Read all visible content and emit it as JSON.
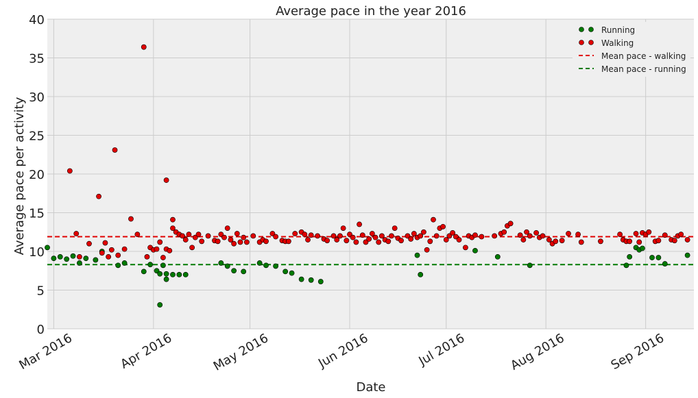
{
  "chart_data": {
    "type": "scatter",
    "title": "Average pace in the year 2016",
    "xlabel": "Date",
    "ylabel": "Average pace per activity",
    "ylim": [
      0,
      40
    ],
    "yticks": [
      "0",
      "5",
      "10",
      "15",
      "20",
      "25",
      "30",
      "35",
      "40"
    ],
    "xlim": [
      -2,
      199
    ],
    "xticks": [
      {
        "day": 0,
        "label": "Mar 2016"
      },
      {
        "day": 31,
        "label": "Apr 2016"
      },
      {
        "day": 61,
        "label": "May 2016"
      },
      {
        "day": 92,
        "label": "Jun 2016"
      },
      {
        "day": 122,
        "label": "Jul 2016"
      },
      {
        "day": 153,
        "label": "Aug 2016"
      },
      {
        "day": 184,
        "label": "Sep 2016"
      }
    ],
    "x_note": "x values are days since 2016-03-01",
    "grid": true,
    "legend_position": "top-right",
    "colors": {
      "running": "#007a00",
      "walking": "#e00000",
      "background": "#efefef",
      "grid": "#cccccc"
    },
    "series": [
      {
        "name": "Running",
        "points": [
          [
            -2,
            10.5
          ],
          [
            0,
            9.1
          ],
          [
            2,
            9.3
          ],
          [
            4,
            9.0
          ],
          [
            6,
            9.4
          ],
          [
            8,
            8.5
          ],
          [
            10,
            9.1
          ],
          [
            13,
            8.9
          ],
          [
            15,
            10.0
          ],
          [
            20,
            8.2
          ],
          [
            22,
            8.5
          ],
          [
            28,
            7.4
          ],
          [
            30,
            8.3
          ],
          [
            32,
            7.5
          ],
          [
            34,
            8.2
          ],
          [
            33,
            3.1
          ],
          [
            33,
            7.1
          ],
          [
            35,
            6.4
          ],
          [
            35,
            7.1
          ],
          [
            37,
            7.0
          ],
          [
            39,
            7.0
          ],
          [
            41,
            7.0
          ],
          [
            52,
            8.5
          ],
          [
            54,
            8.1
          ],
          [
            56,
            7.5
          ],
          [
            59,
            7.4
          ],
          [
            64,
            8.5
          ],
          [
            66,
            8.2
          ],
          [
            69,
            8.1
          ],
          [
            72,
            7.4
          ],
          [
            74,
            7.2
          ],
          [
            77,
            6.4
          ],
          [
            80,
            6.3
          ],
          [
            83,
            6.1
          ],
          [
            113,
            9.5
          ],
          [
            114,
            7.0
          ],
          [
            131,
            10.1
          ],
          [
            138,
            9.3
          ],
          [
            148,
            8.2
          ],
          [
            178,
            8.2
          ],
          [
            179,
            9.3
          ],
          [
            181,
            10.5
          ],
          [
            182,
            10.2
          ],
          [
            183,
            10.4
          ],
          [
            186,
            9.2
          ],
          [
            188,
            9.2
          ],
          [
            190,
            8.4
          ],
          [
            197,
            9.5
          ]
        ]
      },
      {
        "name": "Walking",
        "points": [
          [
            5,
            20.4
          ],
          [
            7,
            12.3
          ],
          [
            8,
            9.3
          ],
          [
            11,
            11.0
          ],
          [
            14,
            17.1
          ],
          [
            15,
            9.8
          ],
          [
            16,
            11.1
          ],
          [
            17,
            9.3
          ],
          [
            18,
            10.2
          ],
          [
            19,
            23.1
          ],
          [
            20,
            9.5
          ],
          [
            22,
            10.3
          ],
          [
            24,
            14.2
          ],
          [
            26,
            12.2
          ],
          [
            28,
            36.4
          ],
          [
            29,
            9.3
          ],
          [
            30,
            10.5
          ],
          [
            31,
            10.2
          ],
          [
            32,
            10.3
          ],
          [
            33,
            11.2
          ],
          [
            34,
            9.2
          ],
          [
            35,
            19.2
          ],
          [
            35,
            10.3
          ],
          [
            36,
            10.1
          ],
          [
            37,
            13.0
          ],
          [
            37,
            14.1
          ],
          [
            38,
            12.5
          ],
          [
            39,
            12.2
          ],
          [
            40,
            12.0
          ],
          [
            41,
            11.5
          ],
          [
            42,
            12.2
          ],
          [
            43,
            10.5
          ],
          [
            44,
            11.8
          ],
          [
            45,
            12.2
          ],
          [
            46,
            11.3
          ],
          [
            48,
            12.0
          ],
          [
            50,
            11.4
          ],
          [
            51,
            11.3
          ],
          [
            52,
            12.2
          ],
          [
            53,
            11.8
          ],
          [
            54,
            13.0
          ],
          [
            55,
            11.5
          ],
          [
            56,
            11.0
          ],
          [
            57,
            12.3
          ],
          [
            58,
            11.2
          ],
          [
            59,
            11.8
          ],
          [
            60,
            11.2
          ],
          [
            62,
            12.0
          ],
          [
            64,
            11.2
          ],
          [
            65,
            11.5
          ],
          [
            66,
            11.3
          ],
          [
            68,
            12.3
          ],
          [
            69,
            11.9
          ],
          [
            71,
            11.4
          ],
          [
            72,
            11.3
          ],
          [
            73,
            11.3
          ],
          [
            75,
            12.3
          ],
          [
            77,
            12.5
          ],
          [
            78,
            12.2
          ],
          [
            79,
            11.5
          ],
          [
            80,
            12.1
          ],
          [
            82,
            12.0
          ],
          [
            84,
            11.6
          ],
          [
            85,
            11.4
          ],
          [
            87,
            12.0
          ],
          [
            88,
            11.5
          ],
          [
            89,
            12.0
          ],
          [
            90,
            13.0
          ],
          [
            91,
            11.4
          ],
          [
            92,
            12.2
          ],
          [
            93,
            11.8
          ],
          [
            94,
            11.2
          ],
          [
            95,
            13.5
          ],
          [
            96,
            12.1
          ],
          [
            97,
            11.2
          ],
          [
            98,
            11.6
          ],
          [
            99,
            12.3
          ],
          [
            100,
            11.8
          ],
          [
            101,
            11.2
          ],
          [
            102,
            12.0
          ],
          [
            103,
            11.5
          ],
          [
            104,
            11.3
          ],
          [
            105,
            12.0
          ],
          [
            106,
            13.0
          ],
          [
            107,
            11.7
          ],
          [
            108,
            11.4
          ],
          [
            110,
            12.0
          ],
          [
            111,
            11.6
          ],
          [
            112,
            12.3
          ],
          [
            113,
            11.8
          ],
          [
            114,
            12.0
          ],
          [
            115,
            12.5
          ],
          [
            116,
            10.2
          ],
          [
            117,
            11.3
          ],
          [
            118,
            14.1
          ],
          [
            119,
            12.0
          ],
          [
            120,
            13.0
          ],
          [
            121,
            13.2
          ],
          [
            122,
            11.5
          ],
          [
            123,
            12.0
          ],
          [
            124,
            12.4
          ],
          [
            125,
            11.9
          ],
          [
            126,
            11.5
          ],
          [
            128,
            10.5
          ],
          [
            129,
            12.0
          ],
          [
            130,
            11.8
          ],
          [
            131,
            12.1
          ],
          [
            133,
            11.9
          ],
          [
            137,
            12.0
          ],
          [
            139,
            12.3
          ],
          [
            140,
            12.5
          ],
          [
            141,
            13.3
          ],
          [
            142,
            13.6
          ],
          [
            145,
            12.1
          ],
          [
            146,
            11.5
          ],
          [
            147,
            12.5
          ],
          [
            148,
            12.0
          ],
          [
            150,
            12.4
          ],
          [
            151,
            11.8
          ],
          [
            152,
            12.0
          ],
          [
            154,
            11.5
          ],
          [
            155,
            11.0
          ],
          [
            156,
            11.3
          ],
          [
            158,
            11.4
          ],
          [
            160,
            12.3
          ],
          [
            163,
            12.2
          ],
          [
            164,
            11.2
          ],
          [
            170,
            11.3
          ],
          [
            176,
            12.2
          ],
          [
            177,
            11.5
          ],
          [
            178,
            11.3
          ],
          [
            179,
            11.3
          ],
          [
            181,
            12.3
          ],
          [
            182,
            11.2
          ],
          [
            183,
            12.4
          ],
          [
            184,
            12.2
          ],
          [
            185,
            12.5
          ],
          [
            187,
            11.3
          ],
          [
            188,
            11.4
          ],
          [
            190,
            12.1
          ],
          [
            192,
            11.5
          ],
          [
            193,
            11.4
          ],
          [
            194,
            12.0
          ],
          [
            195,
            12.2
          ],
          [
            197,
            11.5
          ]
        ]
      }
    ],
    "hlines": [
      {
        "name": "Mean pace - walking",
        "value": 11.9,
        "color": "#e00000"
      },
      {
        "name": "Mean pace - running",
        "value": 8.3,
        "color": "#007a00"
      }
    ]
  }
}
